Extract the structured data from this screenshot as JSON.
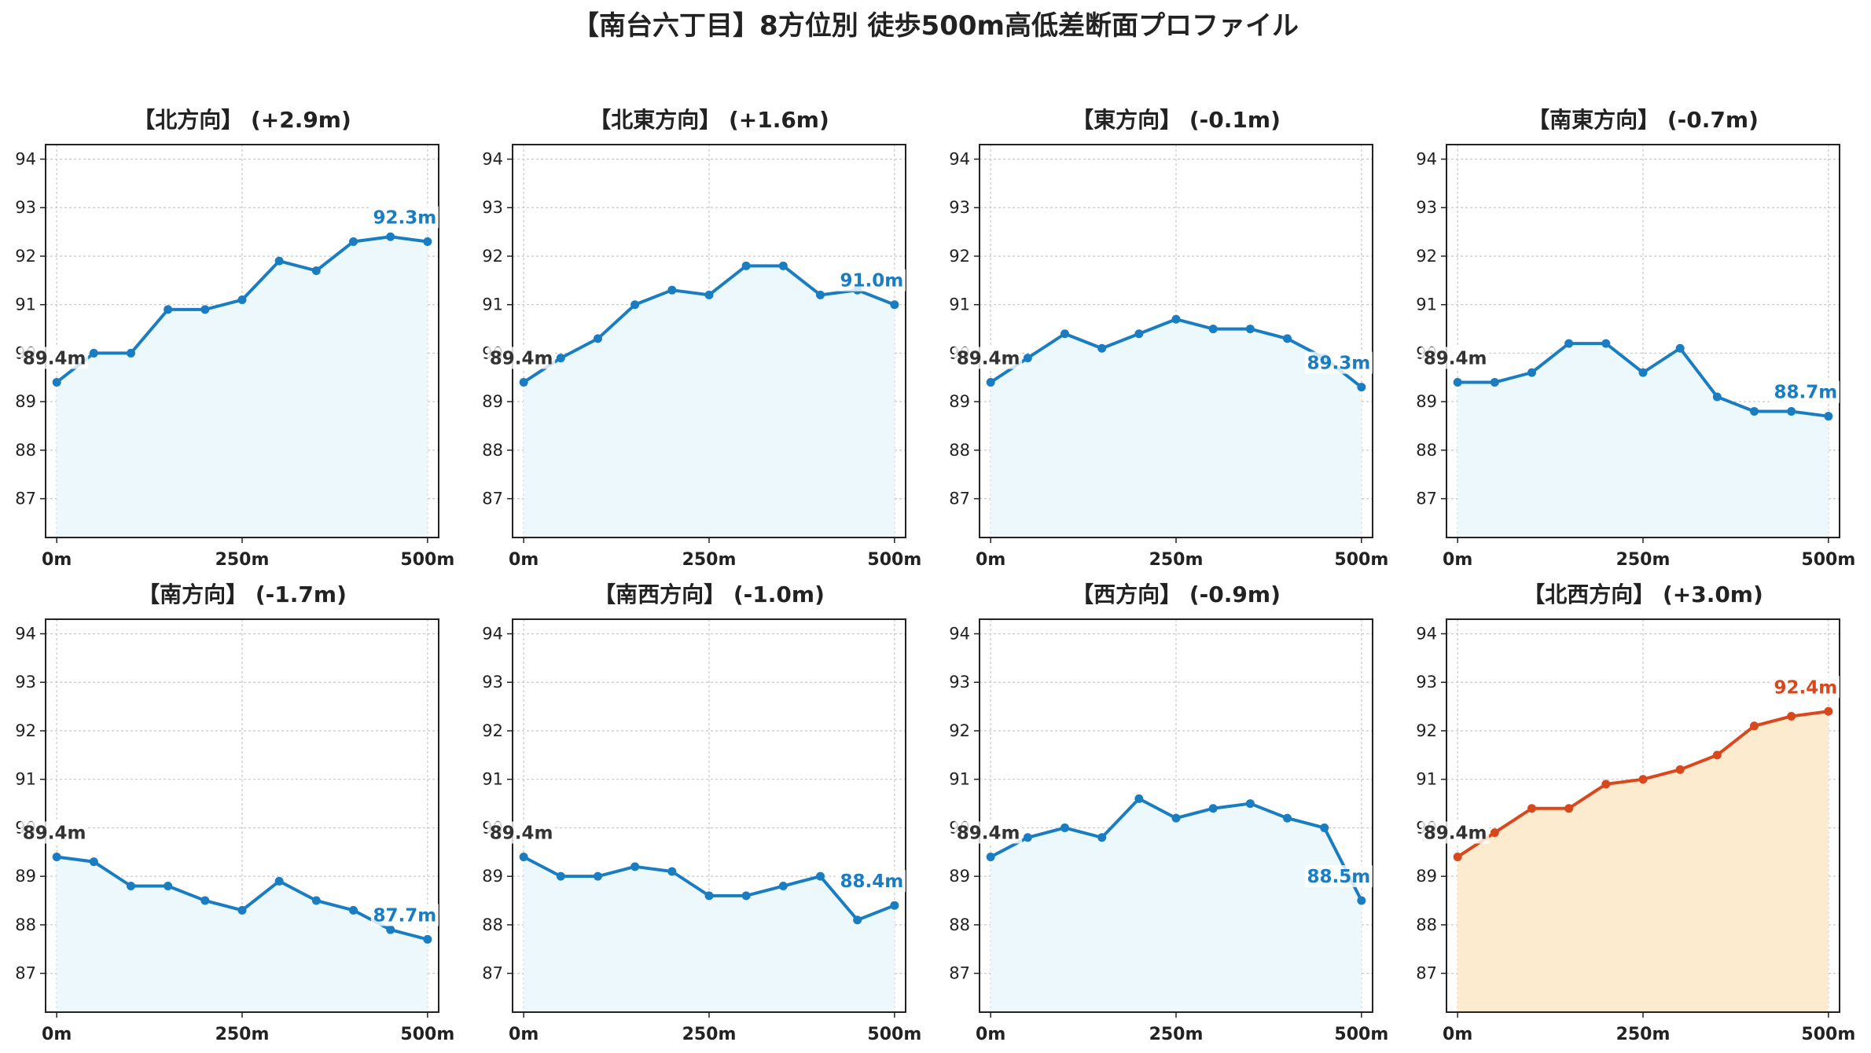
{
  "title": "【南台六丁目】8方位別 徒歩500m高低差断面プロファイル",
  "colors": {
    "normal_line": "#1a7dc1",
    "normal_fill": "#ecf8fc",
    "highlight_line": "#d9481c",
    "highlight_fill": "#fdebcf",
    "start_label": "#333333",
    "grid": "#c8c8c8"
  },
  "chart_data": [
    {
      "type": "line",
      "title": "【北方向】 (+2.9m)",
      "x": [
        0,
        50,
        100,
        150,
        200,
        250,
        300,
        350,
        400,
        450,
        500
      ],
      "values": [
        89.4,
        90.0,
        90.0,
        90.9,
        90.9,
        91.1,
        91.9,
        91.7,
        92.3,
        92.4,
        92.3
      ],
      "start_label": "89.4m",
      "end_label": "92.3m",
      "highlight": false,
      "xticks": [
        "0m",
        "250m",
        "500m"
      ],
      "yticks": [
        87,
        88,
        89,
        90,
        91,
        92,
        93,
        94
      ],
      "ylim": [
        86.2,
        94.3
      ],
      "xlim": [
        -15,
        515
      ],
      "grid": true
    },
    {
      "type": "line",
      "title": "【北東方向】 (+1.6m)",
      "x": [
        0,
        50,
        100,
        150,
        200,
        250,
        300,
        350,
        400,
        450,
        500
      ],
      "values": [
        89.4,
        89.9,
        90.3,
        91.0,
        91.3,
        91.2,
        91.8,
        91.8,
        91.2,
        91.3,
        91.0
      ],
      "start_label": "89.4m",
      "end_label": "91.0m",
      "highlight": false,
      "xticks": [
        "0m",
        "250m",
        "500m"
      ],
      "yticks": [
        87,
        88,
        89,
        90,
        91,
        92,
        93,
        94
      ],
      "ylim": [
        86.2,
        94.3
      ],
      "xlim": [
        -15,
        515
      ],
      "grid": true
    },
    {
      "type": "line",
      "title": "【東方向】 (-0.1m)",
      "x": [
        0,
        50,
        100,
        150,
        200,
        250,
        300,
        350,
        400,
        450,
        500
      ],
      "values": [
        89.4,
        89.9,
        90.4,
        90.1,
        90.4,
        90.7,
        90.5,
        90.5,
        90.3,
        89.9,
        89.3
      ],
      "start_label": "89.4m",
      "end_label": "89.3m",
      "highlight": false,
      "xticks": [
        "0m",
        "250m",
        "500m"
      ],
      "yticks": [
        87,
        88,
        89,
        90,
        91,
        92,
        93,
        94
      ],
      "ylim": [
        86.2,
        94.3
      ],
      "xlim": [
        -15,
        515
      ],
      "grid": true
    },
    {
      "type": "line",
      "title": "【南東方向】 (-0.7m)",
      "x": [
        0,
        50,
        100,
        150,
        200,
        250,
        300,
        350,
        400,
        450,
        500
      ],
      "values": [
        89.4,
        89.4,
        89.6,
        90.2,
        90.2,
        89.6,
        90.1,
        89.1,
        88.8,
        88.8,
        88.7
      ],
      "start_label": "89.4m",
      "end_label": "88.7m",
      "highlight": false,
      "xticks": [
        "0m",
        "250m",
        "500m"
      ],
      "yticks": [
        87,
        88,
        89,
        90,
        91,
        92,
        93,
        94
      ],
      "ylim": [
        86.2,
        94.3
      ],
      "xlim": [
        -15,
        515
      ],
      "grid": true
    },
    {
      "type": "line",
      "title": "【南方向】 (-1.7m)",
      "x": [
        0,
        50,
        100,
        150,
        200,
        250,
        300,
        350,
        400,
        450,
        500
      ],
      "values": [
        89.4,
        89.3,
        88.8,
        88.8,
        88.5,
        88.3,
        88.9,
        88.5,
        88.3,
        87.9,
        87.7
      ],
      "start_label": "89.4m",
      "end_label": "87.7m",
      "highlight": false,
      "xticks": [
        "0m",
        "250m",
        "500m"
      ],
      "yticks": [
        87,
        88,
        89,
        90,
        91,
        92,
        93,
        94
      ],
      "ylim": [
        86.2,
        94.3
      ],
      "xlim": [
        -15,
        515
      ],
      "grid": true
    },
    {
      "type": "line",
      "title": "【南西方向】 (-1.0m)",
      "x": [
        0,
        50,
        100,
        150,
        200,
        250,
        300,
        350,
        400,
        450,
        500
      ],
      "values": [
        89.4,
        89.0,
        89.0,
        89.2,
        89.1,
        88.6,
        88.6,
        88.8,
        89.0,
        88.1,
        88.4
      ],
      "start_label": "89.4m",
      "end_label": "88.4m",
      "highlight": false,
      "xticks": [
        "0m",
        "250m",
        "500m"
      ],
      "yticks": [
        87,
        88,
        89,
        90,
        91,
        92,
        93,
        94
      ],
      "ylim": [
        86.2,
        94.3
      ],
      "xlim": [
        -15,
        515
      ],
      "grid": true
    },
    {
      "type": "line",
      "title": "【西方向】 (-0.9m)",
      "x": [
        0,
        50,
        100,
        150,
        200,
        250,
        300,
        350,
        400,
        450,
        500
      ],
      "values": [
        89.4,
        89.8,
        90.0,
        89.8,
        90.6,
        90.2,
        90.4,
        90.5,
        90.2,
        90.0,
        88.5
      ],
      "start_label": "89.4m",
      "end_label": "88.5m",
      "highlight": false,
      "xticks": [
        "0m",
        "250m",
        "500m"
      ],
      "yticks": [
        87,
        88,
        89,
        90,
        91,
        92,
        93,
        94
      ],
      "ylim": [
        86.2,
        94.3
      ],
      "xlim": [
        -15,
        515
      ],
      "grid": true
    },
    {
      "type": "line",
      "title": "【北西方向】 (+3.0m)",
      "x": [
        0,
        50,
        100,
        150,
        200,
        250,
        300,
        350,
        400,
        450,
        500
      ],
      "values": [
        89.4,
        89.9,
        90.4,
        90.4,
        90.9,
        91.0,
        91.2,
        91.5,
        92.1,
        92.3,
        92.4
      ],
      "start_label": "89.4m",
      "end_label": "92.4m",
      "highlight": true,
      "xticks": [
        "0m",
        "250m",
        "500m"
      ],
      "yticks": [
        87,
        88,
        89,
        90,
        91,
        92,
        93,
        94
      ],
      "ylim": [
        86.2,
        94.3
      ],
      "xlim": [
        -15,
        515
      ],
      "grid": true
    }
  ]
}
